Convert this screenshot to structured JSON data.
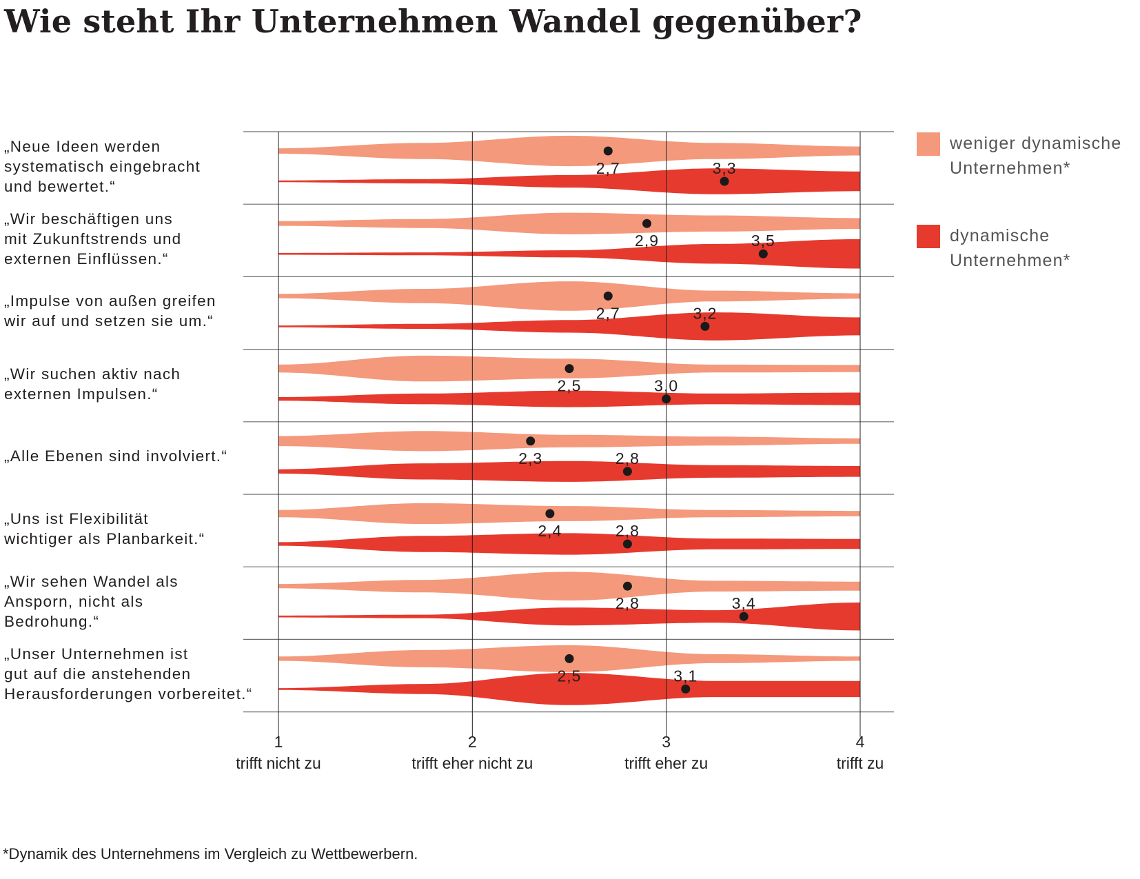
{
  "chart_data": {
    "type": "violin",
    "title": "Wie steht Ihr Unternehmen Wandel gegenüber?",
    "footnote": "*Dynamik des Unternehmens im Vergleich zu Wettbewerbern.",
    "xlim": [
      1,
      4
    ],
    "x_ticks": [
      {
        "value": 1,
        "label": "1",
        "sublabel": "trifft nicht zu"
      },
      {
        "value": 2,
        "label": "2",
        "sublabel": "trifft eher nicht zu"
      },
      {
        "value": 3,
        "label": "3",
        "sublabel": "trifft eher zu"
      },
      {
        "value": 4,
        "label": "4",
        "sublabel": "trifft zu"
      }
    ],
    "legend": [
      {
        "label": "weniger dynamische\nUnternehmen*",
        "color": "#f4997c"
      },
      {
        "label": "dynamische\nUnternehmen*",
        "color": "#e63a2e"
      }
    ],
    "series": [
      {
        "key": "weniger",
        "color": "#f4997c"
      },
      {
        "key": "dynamisch",
        "color": "#e63a2e"
      }
    ],
    "statements": [
      {
        "label": "„Neue Ideen werden\nsystematisch eingebracht\nund bewertet.“",
        "weniger": {
          "mean": 2.7,
          "mean_label": "2,7",
          "density": [
            0.15,
            0.45,
            0.85,
            0.45,
            0.25
          ]
        },
        "dynamisch": {
          "mean": 3.3,
          "mean_label": "3,3",
          "density": [
            0.05,
            0.12,
            0.35,
            0.72,
            0.55
          ]
        }
      },
      {
        "label": "„Wir beschäftigen uns\nmit Zukunftstrends und\nexternen Einflüssen.“",
        "weniger": {
          "mean": 2.9,
          "mean_label": "2,9",
          "density": [
            0.13,
            0.25,
            0.6,
            0.45,
            0.3
          ]
        },
        "dynamisch": {
          "mean": 3.5,
          "mean_label": "3,5",
          "density": [
            0.05,
            0.08,
            0.2,
            0.55,
            0.82
          ]
        }
      },
      {
        "label": "„Impulse von außen greifen\nwir auf und setzen sie um.“",
        "weniger": {
          "mean": 2.7,
          "mean_label": "2,7",
          "density": [
            0.12,
            0.4,
            0.82,
            0.3,
            0.15
          ]
        },
        "dynamisch": {
          "mean": 3.2,
          "mean_label": "3,2",
          "density": [
            0.05,
            0.14,
            0.35,
            0.78,
            0.5
          ]
        }
      },
      {
        "label": "„Wir suchen aktiv nach\nexternen Impulsen.“",
        "weniger": {
          "mean": 2.5,
          "mean_label": "2,5",
          "density": [
            0.22,
            0.72,
            0.55,
            0.22,
            0.2
          ]
        },
        "dynamisch": {
          "mean": 3.0,
          "mean_label": "3,0",
          "density": [
            0.1,
            0.3,
            0.46,
            0.3,
            0.35
          ]
        }
      },
      {
        "label": "„Alle Ebenen sind involviert.“",
        "weniger": {
          "mean": 2.3,
          "mean_label": "2,3",
          "density": [
            0.28,
            0.56,
            0.35,
            0.25,
            0.15
          ]
        },
        "dynamisch": {
          "mean": 2.8,
          "mean_label": "2,8",
          "density": [
            0.12,
            0.45,
            0.58,
            0.35,
            0.3
          ]
        }
      },
      {
        "label": "„Uns ist Flexibilität\nwichtiger als Planbarkeit.“",
        "weniger": {
          "mean": 2.4,
          "mean_label": "2,4",
          "density": [
            0.2,
            0.58,
            0.42,
            0.2,
            0.15
          ]
        },
        "dynamisch": {
          "mean": 2.8,
          "mean_label": "2,8",
          "density": [
            0.1,
            0.45,
            0.6,
            0.3,
            0.28
          ]
        }
      },
      {
        "label": "„Wir sehen Wandel als\nAnsporn, nicht als\nBedrohung.“",
        "weniger": {
          "mean": 2.8,
          "mean_label": "2,8",
          "density": [
            0.12,
            0.35,
            0.8,
            0.3,
            0.25
          ]
        },
        "dynamisch": {
          "mean": 3.4,
          "mean_label": "3,4",
          "density": [
            0.05,
            0.1,
            0.5,
            0.35,
            0.78
          ]
        }
      },
      {
        "label": "„Unser Unternehmen ist\ngut auf die anstehenden\nHerausforderungen vorbereitet.“",
        "weniger": {
          "mean": 2.5,
          "mean_label": "2,5",
          "density": [
            0.12,
            0.48,
            0.75,
            0.25,
            0.12
          ]
        },
        "dynamisch": {
          "mean": 3.1,
          "mean_label": "3,1",
          "density": [
            0.05,
            0.28,
            0.9,
            0.45,
            0.45
          ]
        }
      }
    ]
  }
}
